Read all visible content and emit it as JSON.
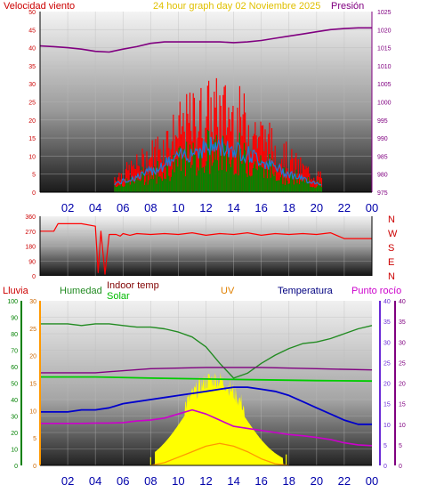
{
  "header": {
    "left_label": "Velocidad viento",
    "title": "24 hour graph day   02 Noviembre 2025",
    "right_label": "Presión"
  },
  "colors": {
    "wind_gust": "#ff0000",
    "wind_avg": "#1e7bd6",
    "wind_green": "#008800",
    "pressure": "#800080",
    "direction": "#ff0000",
    "humidity": "#228b22",
    "indoor_temp": "#00cc00",
    "solar": "#ffff00",
    "uv": "#ff9900",
    "temperature": "#0000cc",
    "dew_point": "#cc00cc",
    "rain_axis": "#008000",
    "temp_axis": "#6a2bd6",
    "right_axis": "#800080"
  },
  "chart_data": [
    {
      "id": "wind-pressure",
      "type": "line",
      "left_axis_ticks": [
        "50",
        "45",
        "40",
        "35",
        "30",
        "25",
        "20",
        "15",
        "10",
        "5",
        "0"
      ],
      "right_axis_ticks": [
        "1025",
        "1020",
        "1015",
        "1010",
        "1005",
        "1000",
        "995",
        "990",
        "985",
        "980",
        "975"
      ],
      "x_ticks": [
        "02",
        "04",
        "06",
        "08",
        "10",
        "12",
        "14",
        "16",
        "18",
        "20",
        "22",
        "00"
      ],
      "ylim_left": [
        0,
        50
      ],
      "ylim_right": [
        975,
        1025
      ],
      "xlim": [
        0,
        24
      ],
      "series": [
        {
          "key": "pressure",
          "axis": "right",
          "x": [
            0,
            1,
            2,
            3,
            4,
            5,
            6,
            7,
            8,
            9,
            10,
            11,
            12,
            13,
            14,
            15,
            16,
            17,
            18,
            19,
            20,
            21,
            22,
            23,
            24
          ],
          "values": [
            1015.5,
            1015.3,
            1015,
            1014.6,
            1014,
            1013.8,
            1014.6,
            1015.3,
            1016.2,
            1016.6,
            1016.6,
            1016.6,
            1016.6,
            1016.6,
            1016.4,
            1016.6,
            1017,
            1017.6,
            1018.2,
            1018.8,
            1019.4,
            1020,
            1020.3,
            1020.5,
            1020.5
          ]
        }
      ]
    },
    {
      "id": "wind-direction",
      "type": "line",
      "left_axis_ticks": [
        "360",
        "270",
        "180",
        "90",
        "0"
      ],
      "right_axis_labels": [
        "N",
        "W",
        "S",
        "E",
        "N"
      ],
      "ylim": [
        0,
        360
      ],
      "xlim": [
        0,
        24
      ],
      "series": [
        {
          "key": "direction",
          "x": [
            0,
            1,
            1.3,
            2,
            3,
            4,
            4.2,
            4.4,
            4.7,
            5,
            5.3,
            5.5,
            5.8,
            6,
            6.5,
            7,
            8,
            9,
            10,
            11,
            12,
            13,
            14,
            15,
            16,
            17,
            18,
            19,
            20,
            21,
            22,
            23,
            24
          ],
          "values": [
            270,
            270,
            315,
            315,
            315,
            300,
            20,
            270,
            10,
            250,
            250,
            250,
            240,
            255,
            245,
            255,
            250,
            255,
            250,
            260,
            245,
            255,
            250,
            260,
            245,
            255,
            250,
            255,
            250,
            260,
            225,
            225,
            225
          ]
        }
      ]
    },
    {
      "id": "weather",
      "type": "line",
      "legend": [
        "Lluvia",
        "Humedad",
        "Indoor temp",
        "Solar",
        "UV",
        "Temperatura",
        "Punto rocío"
      ],
      "rain_ticks": [
        "100",
        "90",
        "80",
        "70",
        "60",
        "50",
        "40",
        "30",
        "20",
        "10",
        "0"
      ],
      "uv_ticks": [
        "30",
        "25",
        "20",
        "15",
        "10",
        "5",
        "0"
      ],
      "temp_ticks": [
        "40",
        "35",
        "30",
        "25",
        "20",
        "15",
        "10",
        "5",
        "0"
      ],
      "x_ticks": [
        "02",
        "04",
        "06",
        "08",
        "10",
        "12",
        "14",
        "16",
        "18",
        "20",
        "22",
        "00"
      ],
      "xlim": [
        0,
        24
      ],
      "series": [
        {
          "key": "humidity",
          "scale": "pct",
          "x": [
            0,
            1,
            2,
            3,
            4,
            5,
            6,
            7,
            8,
            9,
            10,
            11,
            12,
            13,
            14,
            15,
            16,
            17,
            18,
            19,
            20,
            21,
            22,
            23,
            24
          ],
          "values": [
            86,
            86,
            86,
            85,
            86,
            86,
            85,
            84,
            84,
            83,
            81,
            78,
            72,
            62,
            53,
            56,
            62,
            67,
            71,
            74,
            75,
            77,
            80,
            83,
            85
          ]
        },
        {
          "key": "indoor_temp",
          "scale": "temp",
          "x": [
            0,
            4,
            8,
            12,
            16,
            20,
            24
          ],
          "values": [
            21.5,
            21.5,
            21.2,
            21.0,
            20.8,
            20.6,
            20.5
          ]
        },
        {
          "key": "pressure_copy",
          "scale": "temp",
          "x": [
            0,
            4,
            8,
            12,
            16,
            20,
            24
          ],
          "values": [
            22.5,
            22.5,
            23.5,
            23.8,
            23.8,
            23.5,
            23.2
          ]
        },
        {
          "key": "temperature",
          "scale": "temp",
          "x": [
            0,
            1,
            2,
            3,
            4,
            5,
            6,
            7,
            8,
            9,
            10,
            11,
            12,
            13,
            14,
            15,
            16,
            17,
            18,
            19,
            20,
            21,
            22,
            23,
            24
          ],
          "values": [
            13,
            13,
            13,
            13.5,
            13.5,
            14,
            15,
            15.5,
            16,
            16.5,
            17,
            17.5,
            18,
            18.5,
            19,
            19,
            18.5,
            18,
            17,
            15.5,
            14,
            12.5,
            11,
            10,
            10
          ]
        },
        {
          "key": "dew_point",
          "scale": "temp",
          "x": [
            0,
            1,
            2,
            3,
            4,
            5,
            6,
            7,
            8,
            9,
            10,
            11,
            12,
            13,
            14,
            15,
            16,
            17,
            18,
            19,
            20,
            21,
            22,
            23,
            24
          ],
          "values": [
            10.2,
            10.2,
            10.2,
            10.2,
            10.3,
            10.3,
            10.4,
            10.8,
            11,
            11.5,
            12.5,
            13.5,
            12.5,
            11,
            9.5,
            9,
            8.5,
            8,
            7.5,
            7.2,
            6.8,
            6.3,
            5.5,
            5,
            4.8
          ]
        },
        {
          "key": "uv",
          "scale": "uv",
          "x": [
            8,
            9,
            10,
            11,
            12,
            13,
            14,
            15,
            16,
            17,
            18
          ],
          "values": [
            0,
            0.5,
            1.5,
            2.5,
            3.5,
            4,
            3.5,
            2.5,
            1.2,
            0.3,
            0
          ]
        }
      ]
    }
  ]
}
